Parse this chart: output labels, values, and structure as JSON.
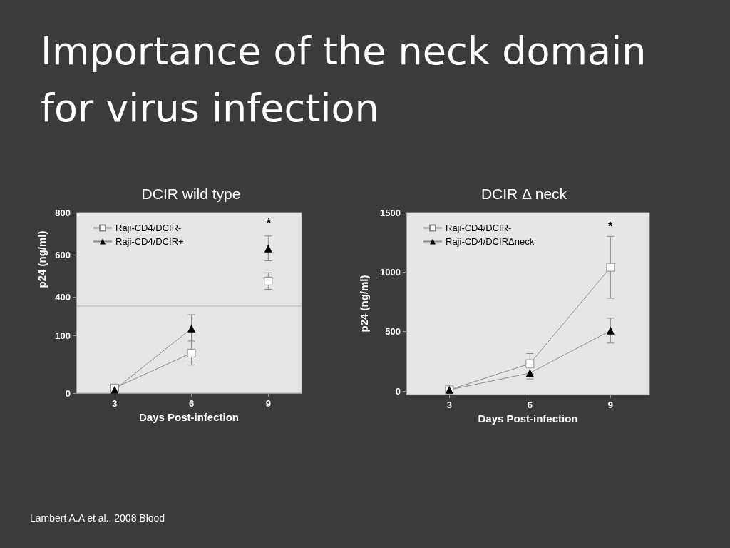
{
  "chart_data": [
    {
      "type": "line",
      "title": "Importance of the neck domain for virus infection",
      "subtitle": "DCIR wild type",
      "ylabel": "p24 (ng/ml)",
      "xlim": [
        1.5,
        10.3
      ],
      "xticks": [
        3,
        6,
        9
      ],
      "ylim": [
        356,
        800
      ],
      "yticks": [
        400,
        600,
        800
      ],
      "tick_labels": "y",
      "legend": "top left",
      "grid": false,
      "series": [
        {
          "name": "Raji-CD4/DCIR-",
          "color": "#ffffff",
          "marker": "square",
          "x": [
            9
          ],
          "values": [
            475
          ],
          "errors": [
            39
          ]
        },
        {
          "name": "Raji-CD4/DCIR+",
          "color": "#000000",
          "marker": "triangle",
          "x": [
            9
          ],
          "values": [
            630
          ],
          "errors": [
            59
          ]
        }
      ],
      "annotations": [
        "*"
      ]
    },
    {
      "type": "line",
      "xlabel": "Days Post-infection",
      "xlim": [
        1.5,
        10.3
      ],
      "xticks": [
        3,
        6,
        9
      ],
      "ylim": [
        0,
        152
      ],
      "yticks": [
        0,
        100
      ],
      "grid": false,
      "series": [
        {
          "color": "#ffffff",
          "marker": "square",
          "x": [
            3,
            6
          ],
          "values": [
            9,
            70
          ],
          "errors": [
            null,
            21
          ]
        },
        {
          "color": "#000000",
          "marker": "triangle",
          "x": [
            3,
            6
          ],
          "values": [
            6,
            113
          ],
          "errors": [
            null,
            24
          ]
        }
      ]
    },
    {
      "type": "line",
      "subtitle": "DCIR Δ neck",
      "xlabel": "Days Post-infection",
      "ylabel": "p24 (ng/ml)",
      "x": [
        3,
        6,
        9
      ],
      "xlim": [
        1.4,
        10.45
      ],
      "xticks": [
        3,
        6,
        9
      ],
      "ylim": [
        -30,
        1500
      ],
      "yticks": [
        0,
        500,
        1000,
        1500
      ],
      "legend": "top left",
      "grid": false,
      "series": [
        {
          "name": "Raji-CD4/DCIR-",
          "color": "#ffffff",
          "marker": "square",
          "values": [
            10,
            230,
            1040
          ],
          "errors": [
            null,
            85,
            260
          ]
        },
        {
          "name": "Raji-CD4/DCIRΔneck",
          "color": "#000000",
          "marker": "triangle",
          "values": [
            10,
            151,
            508
          ],
          "errors": [
            null,
            50,
            105
          ]
        }
      ],
      "annotations": [
        "*",
        "Lambert A.A et al., 2008 Blood"
      ]
    }
  ]
}
